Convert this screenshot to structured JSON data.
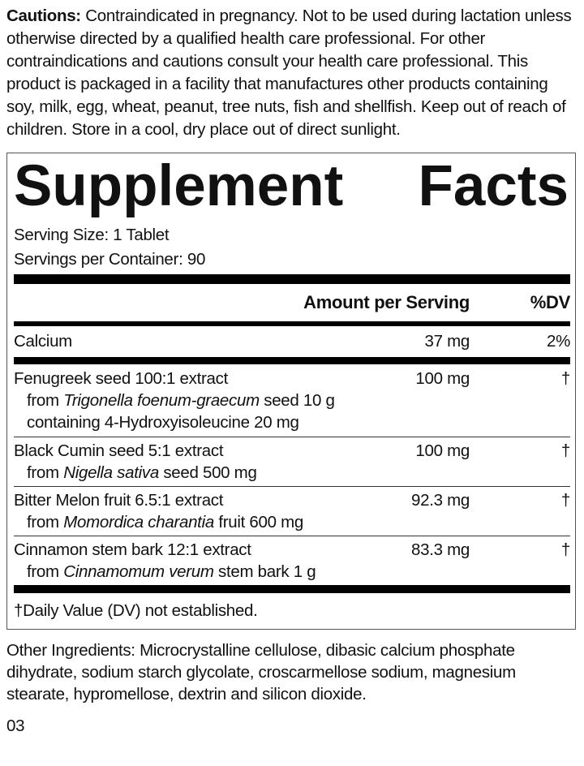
{
  "cautions": {
    "label": "Cautions:",
    "text": "Contraindicated in pregnancy. Not to be used during lactation unless otherwise directed by a qualified health care professional. For other contraindications and cautions consult your health care professional. This product is packaged in a facility that manufactures other products containing soy, milk, egg, wheat, peanut, tree nuts, fish and shellfish. Keep out of reach of children. Store in a cool, dry place out of direct sunlight."
  },
  "facts": {
    "title_word1": "Supplement",
    "title_word2": "Facts",
    "serving_size": "Serving Size: 1 Tablet",
    "servings_per_container": "Servings per Container: 90",
    "header": {
      "amount": "Amount per Serving",
      "dv": "%DV"
    },
    "calcium": {
      "name": "Calcium",
      "amount": "37 mg",
      "dv": "2%"
    },
    "ingredients": [
      {
        "name": "Fenugreek seed 100:1 extract",
        "amount": "100 mg",
        "dv": "†",
        "from_prefix": "from ",
        "latin": "Trigonella foenum-graecum",
        "from_suffix": " seed 10 g",
        "extra": "containing 4-Hydroxyisoleucine 20 mg"
      },
      {
        "name": "Black Cumin seed 5:1 extract",
        "amount": "100 mg",
        "dv": "†",
        "from_prefix": "from ",
        "latin": "Nigella sativa",
        "from_suffix": " seed 500 mg"
      },
      {
        "name": "Bitter Melon fruit 6.5:1 extract",
        "amount": "92.3 mg",
        "dv": "†",
        "from_prefix": "from ",
        "latin": "Momordica charantia",
        "from_suffix": " fruit 600 mg"
      },
      {
        "name": "Cinnamon stem bark 12:1 extract",
        "amount": "83.3 mg",
        "dv": "†",
        "from_prefix": "from ",
        "latin": "Cinnamomum verum",
        "from_suffix": " stem bark 1 g"
      }
    ],
    "footnote": "†Daily Value (DV) not established."
  },
  "other_ingredients": "Other Ingredients: Microcrystalline cellulose, dibasic calcium phosphate dihydrate, sodium starch glycolate, croscarmellose sodium, magnesium stearate, hypromellose, dextrin and silicon dioxide.",
  "page_code": "03"
}
